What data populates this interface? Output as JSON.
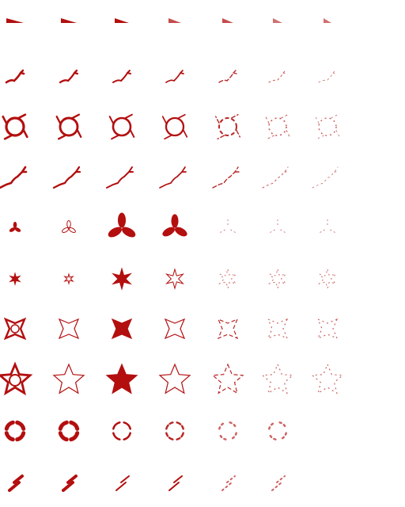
{
  "sheet": {
    "background": "#ffffff",
    "ink_color": "#b30f0f",
    "columns": 7,
    "rows": 10
  },
  "rows": [
    {
      "motif": "wedge",
      "cells": [
        "solid",
        "solid",
        "solid",
        "faded",
        "faded",
        "speck",
        "speck"
      ]
    },
    {
      "motif": "arrow-scribble",
      "cells": [
        "solid",
        "solid",
        "solid",
        "solid",
        "broken",
        "faint",
        "faint"
      ]
    },
    {
      "motif": "swirl-ring",
      "cells": [
        "solid",
        "solid",
        "solid",
        "solid",
        "broken",
        "faint",
        "faint"
      ]
    },
    {
      "motif": "diagonal-arrows",
      "cells": [
        "solid",
        "solid",
        "solid",
        "solid",
        "broken",
        "faint",
        "faint"
      ]
    },
    {
      "motif": "tri-blade",
      "cells": [
        "solid",
        "solid",
        "solid",
        "solid",
        "faint",
        "faint",
        "faint"
      ]
    },
    {
      "motif": "star",
      "cells": [
        "solid",
        "solid",
        "solid",
        "solid",
        "faint",
        "faint",
        "faint"
      ]
    },
    {
      "motif": "four-point-star",
      "cells": [
        "solid",
        "solid",
        "solid",
        "solid",
        "broken",
        "faint",
        "faint"
      ]
    },
    {
      "motif": "five-point-star",
      "cells": [
        "solid",
        "solid",
        "solid",
        "solid",
        "broken",
        "faint",
        "faint"
      ]
    },
    {
      "motif": "ring-segments",
      "cells": [
        "solid",
        "solid",
        "solid",
        "broken",
        "faint",
        "faint",
        "empty"
      ]
    },
    {
      "motif": "slash-pair",
      "cells": [
        "solid",
        "solid",
        "solid",
        "solid",
        "faint",
        "faint",
        "empty"
      ]
    }
  ]
}
